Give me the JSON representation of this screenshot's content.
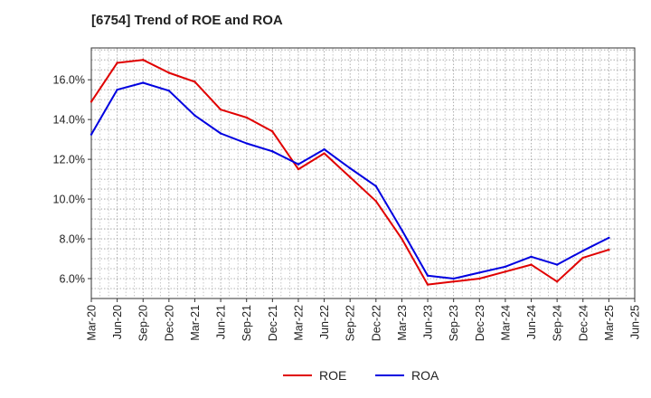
{
  "chart_data": {
    "type": "line",
    "title": "[6754]  Trend of ROE and ROA",
    "xlabel": "",
    "ylabel": "",
    "x": [
      "Mar-20",
      "Jun-20",
      "Sep-20",
      "Dec-20",
      "Mar-21",
      "Jun-21",
      "Sep-21",
      "Dec-21",
      "Mar-22",
      "Jun-22",
      "Sep-22",
      "Dec-22",
      "Mar-23",
      "Jun-23",
      "Sep-23",
      "Dec-23",
      "Mar-24",
      "Jun-24",
      "Sep-24",
      "Dec-24",
      "Mar-25",
      "Jun-25"
    ],
    "ylim": [
      5.0,
      17.6
    ],
    "yticks": [
      6,
      8,
      10,
      12,
      14,
      16
    ],
    "ytick_labels": [
      "6.0%",
      "8.0%",
      "10.0%",
      "12.0%",
      "14.0%",
      "16.0%"
    ],
    "grid": true,
    "legend_position": "bottom-center",
    "series": [
      {
        "name": "ROE",
        "color": "#e00000",
        "values": [
          14.9,
          16.85,
          17.0,
          16.35,
          15.9,
          14.5,
          14.1,
          13.4,
          11.5,
          12.3,
          11.1,
          9.9,
          8.0,
          5.7,
          5.85,
          6.0,
          6.35,
          6.7,
          5.85,
          7.05,
          7.45,
          null
        ]
      },
      {
        "name": "ROA",
        "color": "#0000e0",
        "values": [
          13.25,
          15.5,
          15.85,
          15.45,
          14.2,
          13.3,
          12.8,
          12.4,
          11.75,
          12.5,
          11.55,
          10.65,
          8.45,
          6.15,
          6.0,
          6.3,
          6.6,
          7.1,
          6.7,
          7.4,
          8.05,
          null
        ]
      }
    ]
  }
}
